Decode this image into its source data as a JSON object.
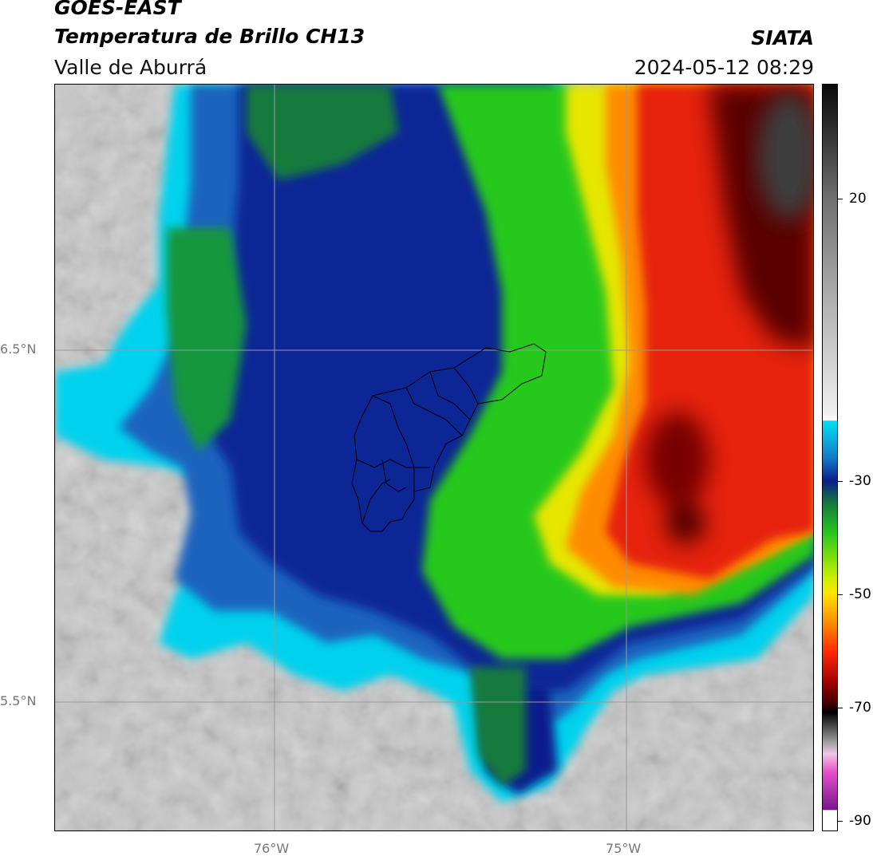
{
  "header": {
    "satellite": "GOES-EAST",
    "product": "Temperatura de Brillo CH13",
    "region": "Valle de Aburrá",
    "agency": "SIATA",
    "datetime": "2024-05-12 08:29"
  },
  "axes": {
    "y_ticks": [
      "6.5°N",
      "5.5°N"
    ],
    "x_ticks": [
      "76°W",
      "75°W"
    ]
  },
  "colorbar": {
    "ticks": [
      "20",
      "-30",
      "-50",
      "-70",
      "-90"
    ]
  },
  "colors": {
    "cold_black": "#1a1a1a",
    "red": "#e8200a",
    "orange": "#ff8c00",
    "yellow": "#f5e400",
    "green": "#3cd21e",
    "dark_blue": "#0a1e8c",
    "cyan": "#00d7f0",
    "gray": "#c8c8c8",
    "magenta": "#c850c8"
  }
}
